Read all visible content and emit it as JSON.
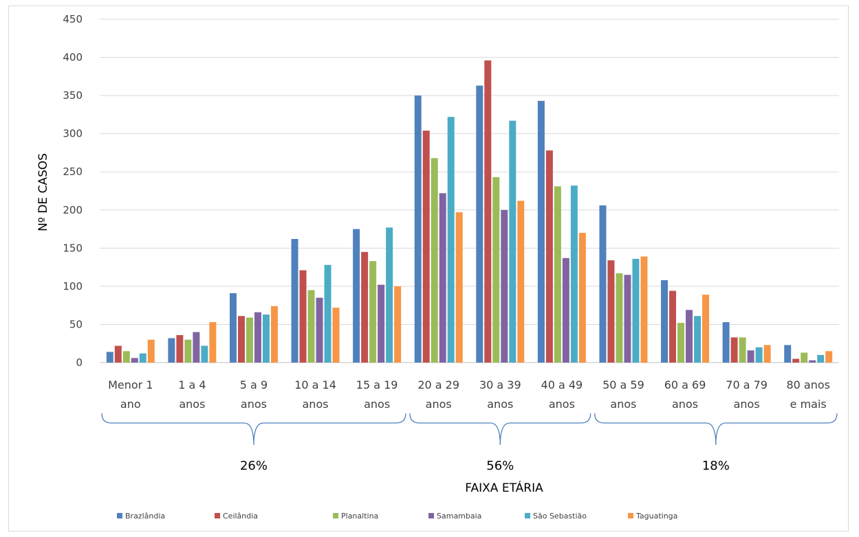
{
  "chart_data": {
    "type": "bar",
    "xlabel": "FAIXA ETÁRIA",
    "ylabel": "Nº DE CASOS",
    "ylim": [
      0,
      450
    ],
    "yticks": [
      0,
      50,
      100,
      150,
      200,
      250,
      300,
      350,
      400,
      450
    ],
    "grid": true,
    "legend_position": "bottom",
    "categories": [
      [
        "Menor 1",
        "ano"
      ],
      [
        "1 a 4",
        "anos"
      ],
      [
        "5 a 9",
        "anos"
      ],
      [
        "10 a 14",
        "anos"
      ],
      [
        "15 a 19",
        "anos"
      ],
      [
        "20 a 29",
        "anos"
      ],
      [
        "30 a 39",
        "anos"
      ],
      [
        "40 a 49",
        "anos"
      ],
      [
        "50 a 59",
        "anos"
      ],
      [
        "60 a 69",
        "anos"
      ],
      [
        "70 a 79",
        "anos"
      ],
      [
        "80 anos",
        "e mais"
      ]
    ],
    "series": [
      {
        "name": "Brazlândia",
        "color": "#4f81bd",
        "values": [
          14,
          32,
          91,
          162,
          175,
          350,
          363,
          343,
          206,
          108,
          53,
          23
        ]
      },
      {
        "name": "Ceilândia",
        "color": "#c0504d",
        "values": [
          22,
          36,
          61,
          121,
          145,
          304,
          396,
          278,
          134,
          94,
          33,
          5
        ]
      },
      {
        "name": "Planaltina",
        "color": "#9bbb59",
        "values": [
          15,
          30,
          59,
          95,
          133,
          268,
          243,
          231,
          117,
          52,
          33,
          13
        ]
      },
      {
        "name": "Samambaia",
        "color": "#8064a2",
        "values": [
          6,
          40,
          66,
          85,
          102,
          222,
          200,
          137,
          115,
          69,
          16,
          3
        ]
      },
      {
        "name": "São Sebastião",
        "color": "#4bacc6",
        "values": [
          12,
          22,
          63,
          128,
          177,
          322,
          317,
          232,
          136,
          61,
          20,
          10
        ]
      },
      {
        "name": "Taguatinga",
        "color": "#f79646",
        "values": [
          30,
          53,
          74,
          72,
          100,
          197,
          212,
          170,
          139,
          89,
          23,
          15
        ]
      }
    ],
    "groups": [
      {
        "label": "26%",
        "from": 0,
        "to": 4
      },
      {
        "label": "56%",
        "from": 5,
        "to": 7
      },
      {
        "label": "18%",
        "from": 8,
        "to": 11
      }
    ]
  }
}
